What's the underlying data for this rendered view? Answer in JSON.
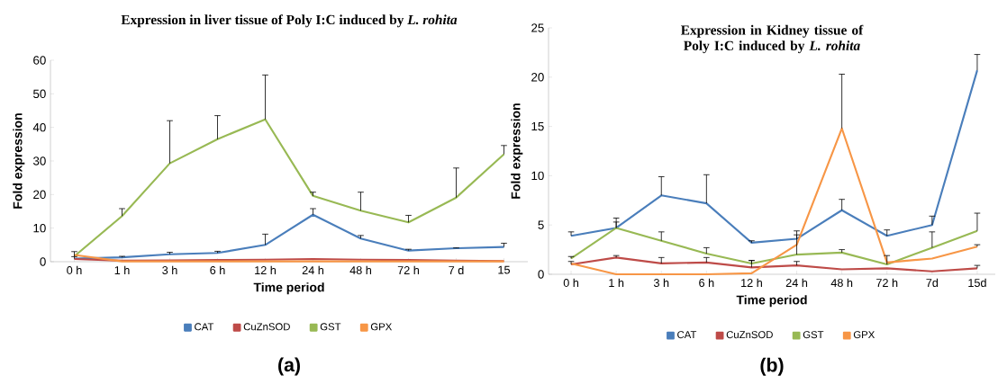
{
  "chart_data": [
    {
      "type": "line",
      "title": "Expression in liver tissue of Poly I:C induced by  *L. rohita*",
      "xlabel": "Time period",
      "ylabel": "Fold expression",
      "categories": [
        "0 h",
        "1 h",
        "3 h",
        "6 h",
        "12 h",
        "24 h",
        "48 h",
        "72 h",
        "7 d",
        "15"
      ],
      "ylim": [
        0,
        60
      ],
      "yticks": [
        0,
        10,
        20,
        30,
        40,
        50,
        60
      ],
      "grid": false,
      "legend": "bottom",
      "annotations": [
        "(a)"
      ],
      "series": [
        {
          "name": "CAT",
          "color": "#4a7ebb",
          "values": [
            0.9,
            1.3,
            2.2,
            2.6,
            5.0,
            14.0,
            6.9,
            3.3,
            4.0,
            4.4
          ],
          "errors": [
            [
              0.9,
              1.5
            ],
            [
              1.3,
              1.6
            ],
            [
              2.2,
              2.8
            ],
            [
              2.6,
              3.1
            ],
            [
              5.0,
              8.2
            ],
            [
              14.0,
              15.8
            ],
            [
              6.9,
              7.8
            ],
            [
              3.3,
              3.7
            ],
            [
              4.0,
              4.1
            ],
            [
              4.4,
              5.5
            ]
          ]
        },
        {
          "name": "CuZnSOD",
          "color": "#be4b48",
          "values": [
            0.8,
            0.3,
            0.4,
            0.5,
            0.6,
            0.8,
            0.6,
            0.5,
            0.3,
            0.2
          ]
        },
        {
          "name": "GST",
          "color": "#98b954",
          "values": [
            1.6,
            13.6,
            29.3,
            36.5,
            42.4,
            19.6,
            15.2,
            11.7,
            19.1,
            32.0
          ],
          "errors": [
            [
              1.6,
              3.0
            ],
            [
              13.6,
              15.8
            ],
            [
              29.3,
              42.0
            ],
            [
              36.5,
              43.5
            ],
            [
              42.4,
              55.6
            ],
            [
              19.6,
              20.7
            ],
            [
              15.2,
              20.7
            ],
            [
              11.7,
              13.8
            ],
            [
              19.1,
              27.9
            ],
            [
              32.0,
              34.6
            ]
          ]
        },
        {
          "name": "GPX",
          "color": "#f79646",
          "values": [
            2.0,
            0.1,
            0.1,
            0.1,
            0.1,
            0.1,
            0.1,
            0.1,
            0.1,
            0.1
          ]
        }
      ]
    },
    {
      "type": "line",
      "title": "Expression in Kidney tissue of  Poly I:C induced by *L. rohita*",
      "xlabel": "Time period",
      "ylabel": "Fold expression",
      "categories": [
        "0 h",
        "1 h",
        "3 h",
        "6 h",
        "12 h",
        "24 h",
        "48 h",
        "72 h",
        "7d",
        "15d"
      ],
      "ylim": [
        0,
        25
      ],
      "yticks": [
        0,
        5,
        10,
        15,
        20,
        25
      ],
      "grid": false,
      "legend": "bottom",
      "annotations": [
        "(b)"
      ],
      "series": [
        {
          "name": "CAT",
          "color": "#4a7ebb",
          "values": [
            3.9,
            4.7,
            8.0,
            7.2,
            3.2,
            3.6,
            6.5,
            3.9,
            5.0,
            20.7
          ],
          "errors": [
            [
              3.9,
              4.3
            ],
            [
              4.7,
              5.7
            ],
            [
              8.0,
              9.9
            ],
            [
              7.2,
              10.1
            ],
            [
              3.2,
              3.4
            ],
            [
              3.6,
              4.4
            ],
            [
              6.5,
              7.6
            ],
            [
              3.9,
              4.5
            ],
            [
              5.0,
              5.9
            ],
            [
              20.7,
              22.3
            ]
          ]
        },
        {
          "name": "CuZnSOD",
          "color": "#be4b48",
          "values": [
            1.0,
            1.7,
            1.1,
            1.2,
            0.7,
            0.9,
            0.5,
            0.6,
            0.3,
            0.6
          ],
          "errors": [
            [
              1.0,
              1.3
            ],
            [
              1.7,
              1.9
            ],
            [
              1.1,
              1.7
            ],
            [
              1.2,
              1.7
            ],
            [
              0.7,
              1.4
            ],
            [
              0.9,
              1.3
            ],
            null,
            null,
            null,
            [
              0.6,
              0.9
            ]
          ]
        },
        {
          "name": "GST",
          "color": "#98b954",
          "values": [
            1.6,
            4.7,
            3.4,
            2.1,
            1.1,
            2.0,
            2.2,
            1.0,
            2.7,
            4.4
          ],
          "errors": [
            [
              1.6,
              1.8
            ],
            [
              4.7,
              5.3
            ],
            [
              3.4,
              4.3
            ],
            [
              2.1,
              2.7
            ],
            [
              1.1,
              1.4
            ],
            [
              2.0,
              4.0
            ],
            [
              2.2,
              2.5
            ],
            [
              1.0,
              1.9
            ],
            [
              2.7,
              4.3
            ],
            [
              4.4,
              6.2
            ]
          ]
        },
        {
          "name": "GPX",
          "color": "#f79646",
          "values": [
            1.1,
            0.0,
            0.0,
            0.0,
            0.1,
            3.0,
            14.8,
            1.2,
            1.6,
            2.8
          ],
          "errors": [
            null,
            null,
            null,
            null,
            null,
            null,
            [
              14.8,
              20.3
            ],
            null,
            null,
            [
              2.8,
              3.0
            ]
          ]
        }
      ]
    }
  ]
}
